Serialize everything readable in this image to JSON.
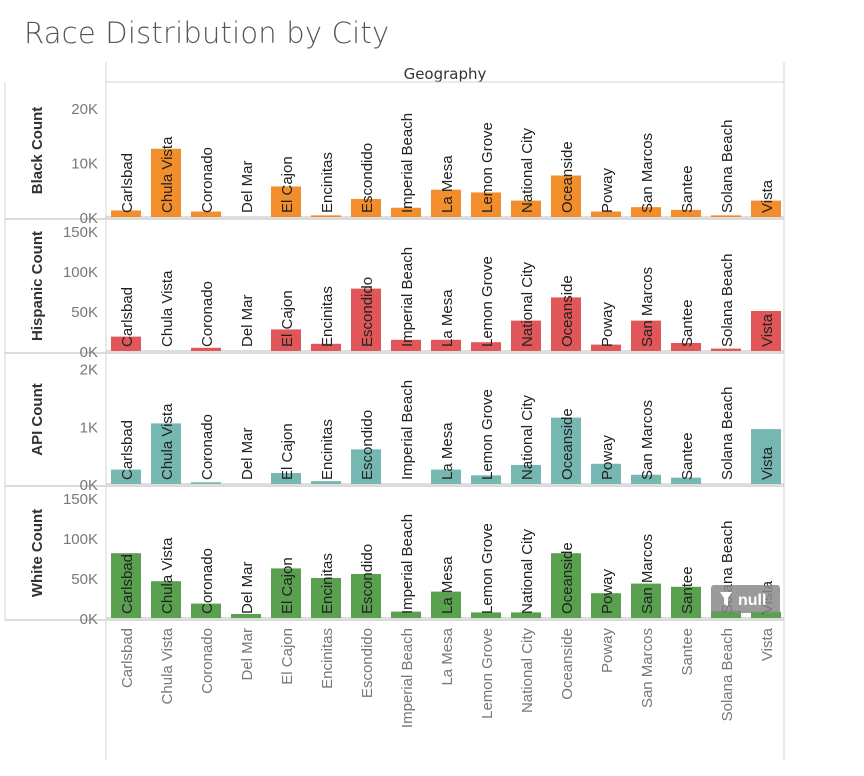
{
  "title": "Race Distribution by City",
  "null_indicator": {
    "icon": "filter-icon",
    "label": "null"
  },
  "chart_data": {
    "type": "bar",
    "column_header": "Geography",
    "categories": [
      "Carlsbad",
      "Chula Vista",
      "Coronado",
      "Del Mar",
      "El Cajon",
      "Encinitas",
      "Escondido",
      "Imperial Beach",
      "La Mesa",
      "Lemon Grove",
      "National City",
      "Oceanside",
      "Poway",
      "San Marcos",
      "Santee",
      "Solana Beach",
      "Vista"
    ],
    "panels": [
      {
        "measure": "Black Count",
        "color": "#f28e2b",
        "ylim": [
          0,
          24000
        ],
        "ticks": [
          {
            "v": 0,
            "label": "0K"
          },
          {
            "v": 10000,
            "label": "10K"
          },
          {
            "v": 20000,
            "label": "20K"
          }
        ],
        "values": [
          1200,
          12500,
          1000,
          0,
          5600,
          300,
          3300,
          1700,
          5000,
          4500,
          3000,
          7600,
          1000,
          1800,
          1300,
          300,
          3000
        ]
      },
      {
        "measure": "Hispanic Count",
        "color": "#e15759",
        "ylim": [
          0,
          160000
        ],
        "ticks": [
          {
            "v": 0,
            "label": "0K"
          },
          {
            "v": 50000,
            "label": "50K"
          },
          {
            "v": 100000,
            "label": "100K"
          },
          {
            "v": 150000,
            "label": "150K"
          }
        ],
        "values": [
          18000,
          0,
          4000,
          0,
          27000,
          9000,
          78000,
          14000,
          14000,
          11000,
          38000,
          67000,
          8000,
          38000,
          10000,
          3000,
          50000
        ]
      },
      {
        "measure": "API Count",
        "color": "#76b7b2",
        "ylim": [
          0,
          2200
        ],
        "ticks": [
          {
            "v": 0,
            "label": "0K"
          },
          {
            "v": 1000,
            "label": "1K"
          },
          {
            "v": 2000,
            "label": "2K"
          }
        ],
        "values": [
          250,
          1050,
          30,
          0,
          190,
          50,
          600,
          0,
          250,
          150,
          330,
          1150,
          350,
          160,
          110,
          0,
          950
        ]
      },
      {
        "measure": "White Count",
        "color": "#59a14f",
        "ylim": [
          0,
          160000
        ],
        "ticks": [
          {
            "v": 0,
            "label": "0K"
          },
          {
            "v": 50000,
            "label": "50K"
          },
          {
            "v": 100000,
            "label": "100K"
          },
          {
            "v": 150000,
            "label": "150K"
          }
        ],
        "values": [
          81000,
          46000,
          18000,
          5000,
          62000,
          50000,
          55000,
          8000,
          33000,
          7000,
          7000,
          81000,
          31000,
          43000,
          39000,
          9000,
          8000
        ]
      }
    ]
  }
}
